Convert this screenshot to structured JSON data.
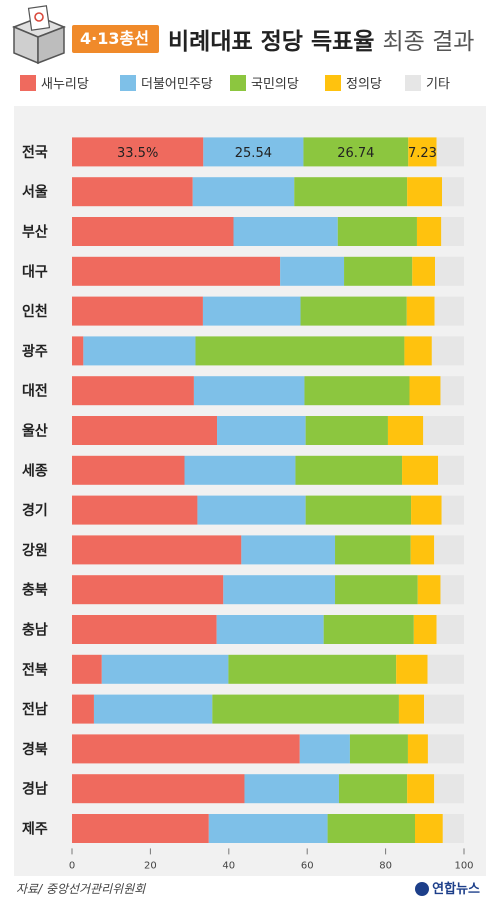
{
  "header": {
    "badge": "4·13총선",
    "title_main": "비례대표 정당 득표율",
    "title_sub": "최종 결과"
  },
  "colors": {
    "saenuri": "#ef6a5e",
    "minju": "#7ec0e8",
    "gukmin": "#8cc63f",
    "jeongui": "#ffc20e",
    "other": "#e6e6e6",
    "badge": "#f08a2a"
  },
  "chart_data": {
    "type": "bar",
    "orientation": "horizontal",
    "stacked": true,
    "title": "비례대표 정당 득표율 최종 결과",
    "xlim": [
      0,
      100
    ],
    "xticks": [
      0,
      20,
      40,
      60,
      80,
      100
    ],
    "categories": [
      "전국",
      "서울",
      "부산",
      "대구",
      "인천",
      "광주",
      "대전",
      "울산",
      "세종",
      "경기",
      "강원",
      "충북",
      "충남",
      "전북",
      "전남",
      "경북",
      "경남",
      "제주"
    ],
    "series": [
      {
        "name": "새누리당",
        "color": "#ef6a5e",
        "values": [
          33.5,
          30.8,
          41.2,
          53.1,
          33.4,
          2.9,
          31.1,
          37.0,
          28.7,
          32.0,
          43.2,
          38.6,
          36.9,
          7.6,
          5.6,
          58.1,
          44.0,
          34.9
        ]
      },
      {
        "name": "더불어민주당",
        "color": "#7ec0e8",
        "values": [
          25.54,
          25.9,
          26.6,
          16.3,
          24.9,
          28.6,
          28.2,
          22.6,
          28.3,
          27.6,
          23.9,
          28.5,
          27.3,
          32.3,
          30.2,
          12.8,
          24.1,
          30.3
        ]
      },
      {
        "name": "국민의당",
        "color": "#8cc63f",
        "values": [
          26.74,
          28.8,
          20.2,
          17.4,
          27.1,
          53.3,
          26.8,
          21.0,
          27.2,
          26.9,
          19.3,
          21.1,
          23.0,
          42.8,
          47.6,
          14.8,
          17.4,
          22.3
        ]
      },
      {
        "name": "정의당",
        "color": "#ffc20e",
        "values": [
          7.23,
          8.9,
          6.2,
          5.8,
          7.1,
          7.0,
          7.9,
          9.0,
          9.2,
          7.8,
          6.0,
          5.8,
          5.8,
          8.0,
          6.4,
          5.1,
          6.9,
          7.1
        ]
      },
      {
        "name": "기타",
        "color": "#e6e6e6",
        "values": [
          6.99,
          5.6,
          5.8,
          7.4,
          7.5,
          8.2,
          6.0,
          10.4,
          6.6,
          5.7,
          7.6,
          6.0,
          7.0,
          9.3,
          10.2,
          9.2,
          7.6,
          5.4
        ]
      }
    ],
    "data_labels": {
      "row": "전국",
      "labels": [
        "33.5%",
        "25.54",
        "26.74",
        "7.23",
        ""
      ]
    },
    "legend_position": "top",
    "grid": false
  },
  "footer": {
    "source": "자료/ 중앙선거관리위원회",
    "logo": "연합뉴스"
  }
}
